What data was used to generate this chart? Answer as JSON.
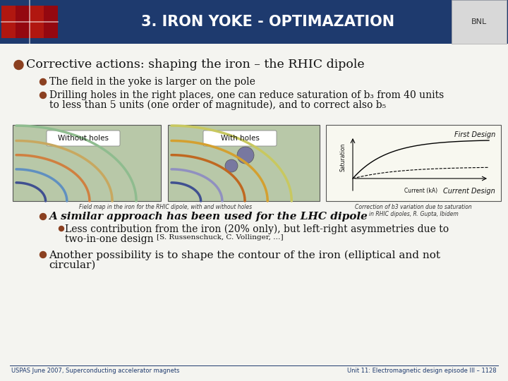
{
  "title": "3. IRON YOKE - OPTIMAZATION",
  "title_bg_color": "#1e3a6e",
  "title_text_color": "#ffffff",
  "slide_bg_color": "#f4f4f0",
  "bullet_color": "#8b4020",
  "main_bullet": "Corrective actions: shaping the iron – the RHIC dipole",
  "sub_bullet1": "The field in the yoke is larger on the pole",
  "sub_bullet2_line1": "Drilling holes in the right places, one can reduce saturation of b₃ from 40 units",
  "sub_bullet2_line2": "to less than 5 units (one order of magnitude), and to correct also b₅",
  "lhc_bullet_line1": "A similar approach has been used for the LHC dipole",
  "lhc_sub_line1": "Less contribution from the iron (20% only), but left-right asymmetries due to",
  "lhc_sub_line2": "two-in-one design ",
  "lhc_sub_ref": "[S. Russenschuck, C. Vollinger, …]",
  "another_line1": "Another possibility is to shape the contour of the iron (elliptical and not",
  "another_line2": "circular)",
  "caption_left": "Field map in the iron for the RHIC dipole, with and without holes",
  "caption_right_line1": "Correction of b3 variation due to saturation",
  "caption_right_line2": "in RHIC dipoles, R. Gupta, Ibidem",
  "footer_left": "USPAS June 2007, Superconducting accelerator magnets",
  "footer_right": "Unit 11: Electromagnetic design episode III – 1128",
  "footer_color": "#1e3a6e",
  "img1_label": "Without holes",
  "img2_label": "With holes",
  "graph_label_top": "First Design",
  "graph_label_bottom": "Current Design",
  "graph_xlabel": "Current (kA)",
  "graph_ylabel": "Saturation"
}
